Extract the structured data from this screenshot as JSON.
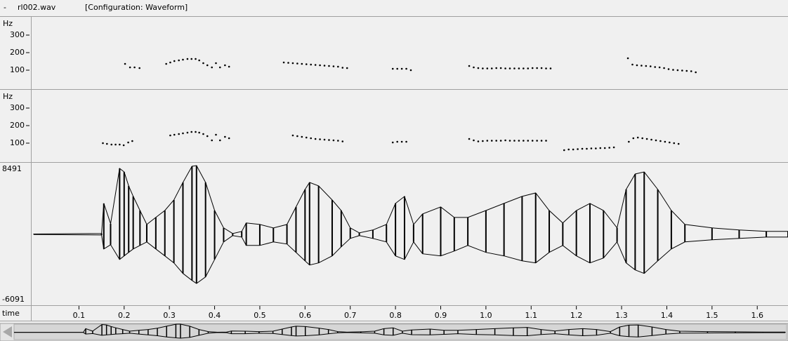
{
  "header": {
    "menu": "-",
    "file": "rl002.wav",
    "config": "[Configuration: Waveform]"
  },
  "pitch_panels": [
    {
      "unit": "Hz",
      "ylim": [
        0,
        400
      ],
      "yticks": [
        100,
        200,
        300
      ],
      "x": [
        0.202,
        0.213,
        0.223,
        0.234,
        0.293,
        0.302,
        0.311,
        0.321,
        0.33,
        0.34,
        0.349,
        0.358,
        0.366,
        0.375,
        0.384,
        0.394,
        0.403,
        0.412,
        0.423,
        0.432,
        0.553,
        0.563,
        0.573,
        0.583,
        0.593,
        0.603,
        0.613,
        0.623,
        0.633,
        0.643,
        0.653,
        0.663,
        0.673,
        0.683,
        0.693,
        0.794,
        0.804,
        0.814,
        0.824,
        0.834,
        0.963,
        0.973,
        0.983,
        0.993,
        1.003,
        1.013,
        1.023,
        1.033,
        1.043,
        1.053,
        1.063,
        1.073,
        1.083,
        1.093,
        1.103,
        1.113,
        1.123,
        1.133,
        1.143,
        1.314,
        1.324,
        1.334,
        1.344,
        1.354,
        1.364,
        1.374,
        1.384,
        1.394,
        1.404,
        1.414,
        1.424,
        1.434,
        1.444,
        1.454,
        1.464
      ],
      "values": [
        136,
        116,
        116,
        112,
        136,
        144,
        152,
        156,
        160,
        164,
        164,
        164,
        156,
        140,
        128,
        116,
        140,
        116,
        128,
        120,
        144,
        142,
        140,
        138,
        136,
        134,
        132,
        130,
        128,
        126,
        124,
        122,
        120,
        114,
        112,
        108,
        108,
        108,
        108,
        100,
        124,
        116,
        112,
        110,
        110,
        110,
        112,
        112,
        110,
        110,
        110,
        110,
        110,
        110,
        112,
        112,
        112,
        110,
        110,
        168,
        132,
        128,
        126,
        124,
        122,
        118,
        116,
        112,
        106,
        102,
        100,
        98,
        96,
        94,
        88
      ]
    },
    {
      "unit": "Hz",
      "ylim": [
        0,
        400
      ],
      "yticks": [
        100,
        200,
        300
      ],
      "x": [
        0.153,
        0.162,
        0.172,
        0.181,
        0.19,
        0.199,
        0.209,
        0.218,
        0.302,
        0.311,
        0.321,
        0.33,
        0.34,
        0.349,
        0.358,
        0.366,
        0.375,
        0.384,
        0.394,
        0.403,
        0.412,
        0.423,
        0.432,
        0.573,
        0.583,
        0.593,
        0.603,
        0.613,
        0.623,
        0.633,
        0.643,
        0.653,
        0.663,
        0.673,
        0.683,
        0.794,
        0.804,
        0.814,
        0.824,
        0.963,
        0.973,
        0.983,
        0.993,
        1.003,
        1.013,
        1.023,
        1.033,
        1.043,
        1.053,
        1.063,
        1.073,
        1.083,
        1.093,
        1.103,
        1.113,
        1.123,
        1.133,
        1.173,
        1.183,
        1.193,
        1.203,
        1.213,
        1.223,
        1.233,
        1.243,
        1.253,
        1.263,
        1.273,
        1.283,
        1.316,
        1.326,
        1.336,
        1.346,
        1.356,
        1.366,
        1.376,
        1.386,
        1.396,
        1.406,
        1.416,
        1.426
      ],
      "values": [
        100,
        96,
        92,
        92,
        92,
        88,
        104,
        112,
        144,
        148,
        152,
        156,
        160,
        164,
        164,
        160,
        152,
        140,
        116,
        148,
        116,
        136,
        128,
        144,
        140,
        136,
        132,
        128,
        124,
        122,
        120,
        118,
        116,
        114,
        110,
        104,
        108,
        108,
        108,
        124,
        116,
        110,
        112,
        114,
        114,
        114,
        114,
        116,
        114,
        114,
        114,
        114,
        114,
        114,
        114,
        114,
        114,
        60,
        64,
        64,
        66,
        68,
        68,
        70,
        70,
        72,
        72,
        74,
        76,
        108,
        128,
        132,
        128,
        124,
        120,
        116,
        112,
        108,
        104,
        100,
        96
      ]
    }
  ],
  "waveform": {
    "ylim": [
      -6091,
      8491
    ],
    "x": [
      0,
      0.15,
      0.155,
      0.17,
      0.19,
      0.2,
      0.21,
      0.22,
      0.235,
      0.25,
      0.27,
      0.29,
      0.31,
      0.33,
      0.35,
      0.36,
      0.38,
      0.4,
      0.42,
      0.44,
      0.46,
      0.47,
      0.5,
      0.53,
      0.56,
      0.58,
      0.6,
      0.61,
      0.63,
      0.66,
      0.68,
      0.7,
      0.72,
      0.75,
      0.78,
      0.8,
      0.82,
      0.84,
      0.86,
      0.9,
      0.93,
      0.96,
      1.0,
      1.04,
      1.08,
      1.11,
      1.14,
      1.17,
      1.2,
      1.23,
      1.26,
      1.29,
      1.31,
      1.33,
      1.35,
      1.38,
      1.41,
      1.44,
      1.5,
      1.56,
      1.62,
      1.668
    ],
    "max": [
      30,
      90,
      3810,
      1300,
      8140,
      7710,
      5980,
      4680,
      2940,
      1210,
      2080,
      2940,
      4240,
      6410,
      8400,
      8491,
      6410,
      2940,
      780,
      90,
      350,
      1390,
      1210,
      780,
      1210,
      3380,
      5540,
      6410,
      5980,
      4240,
      2940,
      780,
      170,
      520,
      1210,
      3810,
      4680,
      1210,
      2510,
      3380,
      2080,
      2080,
      2940,
      3810,
      4680,
      5110,
      2940,
      1390,
      2940,
      3810,
      2940,
      780,
      5540,
      7450,
      7710,
      5540,
      2940,
      1210,
      780,
      520,
      350,
      350
    ],
    "min": [
      -30,
      -90,
      -1820,
      -1300,
      -3120,
      -2680,
      -2250,
      -1820,
      -1390,
      -950,
      -1820,
      -2680,
      -3550,
      -4850,
      -5720,
      -6091,
      -5280,
      -3120,
      -950,
      -170,
      -350,
      -1390,
      -1390,
      -950,
      -1210,
      -2250,
      -3290,
      -3810,
      -3550,
      -2680,
      -1560,
      -520,
      -170,
      -520,
      -950,
      -2680,
      -3120,
      -950,
      -2420,
      -2680,
      -2080,
      -1390,
      -2250,
      -2680,
      -3290,
      -3550,
      -2250,
      -1390,
      -2680,
      -3550,
      -2940,
      -950,
      -3550,
      -4420,
      -4850,
      -3290,
      -1820,
      -950,
      -690,
      -520,
      -350,
      -350
    ]
  },
  "time_axis": {
    "label": "time",
    "xlim": [
      0,
      1.668
    ],
    "xticks": [
      0.1,
      0.2,
      0.3,
      0.4,
      0.5,
      0.6,
      0.7,
      0.8,
      0.9,
      {
        "value": 1,
        "label": "1.0"
      },
      1.1,
      1.2,
      1.3,
      1.4,
      1.5,
      1.6
    ]
  }
}
